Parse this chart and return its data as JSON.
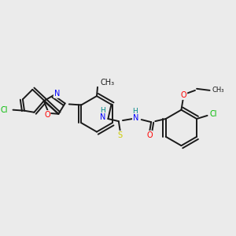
{
  "bg_color": "#ebebeb",
  "bond_color": "#1a1a1a",
  "line_width": 1.4,
  "atom_colors": {
    "N": "#0000ff",
    "O": "#ff0000",
    "S": "#cccc00",
    "Cl": "#00bb00",
    "H": "#008888"
  },
  "font_size": 7.0,
  "small_font": 6.5
}
